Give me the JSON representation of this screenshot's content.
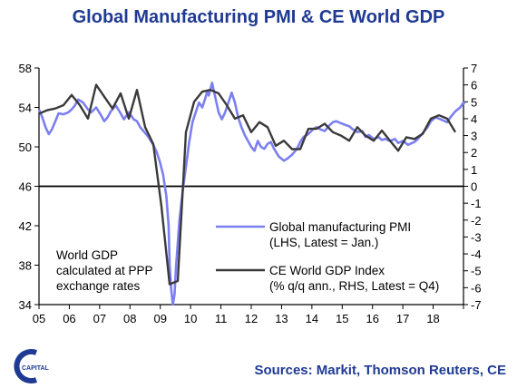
{
  "title": "Global Manufacturing PMI & CE World GDP",
  "sources": "Sources: Markit, Thomson Reuters, CE",
  "logo_text": "CAPITAL",
  "colors": {
    "title": "#1f3a93",
    "pmi": "#7b7ff0",
    "gdp": "#3a3a3a",
    "axis": "#000000"
  },
  "chart_data": {
    "type": "line",
    "xlabel": "",
    "x_ticks": [
      "05",
      "06",
      "07",
      "08",
      "09",
      "10",
      "11",
      "12",
      "13",
      "14",
      "15",
      "16",
      "17",
      "18"
    ],
    "x_range": [
      2005.0,
      2018.0
    ],
    "left_axis": {
      "ylim": [
        34,
        58
      ],
      "ticks": [
        "58",
        "54",
        "50",
        "46",
        "42",
        "38",
        "34"
      ]
    },
    "right_axis": {
      "ylim": [
        -7,
        7
      ],
      "ticks": [
        "7",
        "6",
        "5",
        "4",
        "3",
        "2",
        "1",
        "0",
        "-1",
        "-2",
        "-3",
        "-4",
        "-5",
        "-6",
        "-7"
      ]
    },
    "grid": false,
    "reference_line": {
      "axis": "left",
      "value": 46
    },
    "annotation": [
      "World GDP",
      "calculated at PPP",
      "exchange rates"
    ],
    "legend": {
      "placement": "center-right",
      "entries": [
        {
          "series": "pmi",
          "lines": [
            "Global manufacturing PMI",
            "(LHS, Latest = Jan.)"
          ]
        },
        {
          "series": "gdp",
          "lines": [
            "CE World GDP Index",
            "(% q/q ann., RHS, Latest = Q4)"
          ]
        }
      ]
    },
    "series": [
      {
        "name": "Global manufacturing PMI",
        "key": "pmi",
        "axis": "left",
        "x": [
          2005.0,
          2005.1,
          2005.2,
          2005.3,
          2005.4,
          2005.5,
          2005.6,
          2005.75,
          2005.9,
          2006.0,
          2006.1,
          2006.2,
          2006.35,
          2006.5,
          2006.6,
          2006.75,
          2006.9,
          2007.0,
          2007.1,
          2007.2,
          2007.35,
          2007.5,
          2007.6,
          2007.75,
          2007.9,
          2008.0,
          2008.1,
          2008.2,
          2008.35,
          2008.5,
          2008.6,
          2008.7,
          2008.8,
          2008.9,
          2008.97,
          2009.0,
          2009.05,
          2009.1,
          2009.15,
          2009.2,
          2009.3,
          2009.4,
          2009.5,
          2009.6,
          2009.7,
          2009.8,
          2009.9,
          2010.0,
          2010.1,
          2010.15,
          2010.2,
          2010.3,
          2010.4,
          2010.5,
          2010.6,
          2010.7,
          2010.8,
          2010.9,
          2011.0,
          2011.1,
          2011.2,
          2011.3,
          2011.4,
          2011.5,
          2011.6,
          2011.7,
          2011.8,
          2011.9,
          2012.0,
          2012.1,
          2012.2,
          2012.35,
          2012.5,
          2012.6,
          2012.75,
          2012.9,
          2013.0,
          2013.1,
          2013.25,
          2013.4,
          2013.5,
          2013.6,
          2013.75,
          2013.9,
          2014.0,
          2014.1,
          2014.25,
          2014.4,
          2014.5,
          2014.6,
          2014.75,
          2014.9,
          2015.0,
          2015.1,
          2015.25,
          2015.4,
          2015.5,
          2015.6,
          2015.75,
          2015.9,
          2016.0,
          2016.15,
          2016.3,
          2016.5,
          2016.6,
          2016.75,
          2016.9,
          2017.0,
          2017.15,
          2017.3,
          2017.5,
          2017.6,
          2017.75,
          2017.9,
          2018.0,
          2018.05
        ],
        "values": [
          53.8,
          53.0,
          52.0,
          51.3,
          51.8,
          52.6,
          53.4,
          53.3,
          53.5,
          53.8,
          54.2,
          54.8,
          54.5,
          53.8,
          53.5,
          54.0,
          53.2,
          52.6,
          53.0,
          53.6,
          54.2,
          53.4,
          52.8,
          53.5,
          52.8,
          52.6,
          52.0,
          51.6,
          51.0,
          50.2,
          49.5,
          48.5,
          47.2,
          45.0,
          42.0,
          38.0,
          35.5,
          34.0,
          35.0,
          38.0,
          42.5,
          45.5,
          48.0,
          50.5,
          52.5,
          53.5,
          54.5,
          54.0,
          55.0,
          55.6,
          55.2,
          56.5,
          55.0,
          53.5,
          52.8,
          53.5,
          54.5,
          55.5,
          54.5,
          53.0,
          52.0,
          51.2,
          50.6,
          50.0,
          49.6,
          50.6,
          50.0,
          49.8,
          50.3,
          50.5,
          49.8,
          49.0,
          48.6,
          48.8,
          49.2,
          49.8,
          50.5,
          51.0,
          51.3,
          51.8,
          52.0,
          51.8,
          51.6,
          52.2,
          52.5,
          52.6,
          52.4,
          52.2,
          52.1,
          51.8,
          51.5,
          51.6,
          51.0,
          51.2,
          50.8,
          51.0,
          50.7,
          50.8,
          50.6,
          50.8,
          50.4,
          50.6,
          50.2,
          50.5,
          50.8,
          51.4,
          52.0,
          52.6,
          53.0,
          52.8,
          52.5,
          53.0,
          53.6,
          54.0,
          54.5,
          54.4
        ]
      },
      {
        "name": "CE World GDP Index",
        "key": "gdp",
        "axis": "right",
        "x": [
          2005.0,
          2005.25,
          2005.5,
          2005.75,
          2006.0,
          2006.25,
          2006.5,
          2006.75,
          2007.0,
          2007.25,
          2007.5,
          2007.75,
          2008.0,
          2008.25,
          2008.5,
          2008.75,
          2009.0,
          2009.25,
          2009.5,
          2009.75,
          2010.0,
          2010.25,
          2010.5,
          2010.75,
          2011.0,
          2011.25,
          2011.5,
          2011.75,
          2012.0,
          2012.25,
          2012.5,
          2012.75,
          2013.0,
          2013.25,
          2013.5,
          2013.75,
          2014.0,
          2014.25,
          2014.5,
          2014.75,
          2015.0,
          2015.25,
          2015.5,
          2015.75,
          2016.0,
          2016.25,
          2016.5,
          2016.75,
          2017.0,
          2017.25,
          2017.5,
          2017.75
        ],
        "values": [
          4.3,
          4.5,
          4.6,
          4.8,
          5.4,
          4.8,
          4.0,
          6.0,
          5.3,
          4.6,
          5.5,
          4.0,
          5.7,
          3.5,
          2.5,
          -1.2,
          -5.8,
          -5.6,
          3.2,
          5.0,
          5.6,
          5.7,
          5.5,
          4.8,
          4.0,
          4.2,
          3.2,
          3.8,
          3.5,
          2.4,
          2.7,
          2.2,
          2.2,
          3.4,
          3.4,
          3.7,
          3.2,
          3.0,
          2.7,
          3.5,
          3.0,
          2.7,
          3.3,
          2.7,
          2.1,
          2.9,
          2.8,
          3.1,
          4.0,
          4.2,
          4.0,
          3.2
        ]
      }
    ]
  }
}
